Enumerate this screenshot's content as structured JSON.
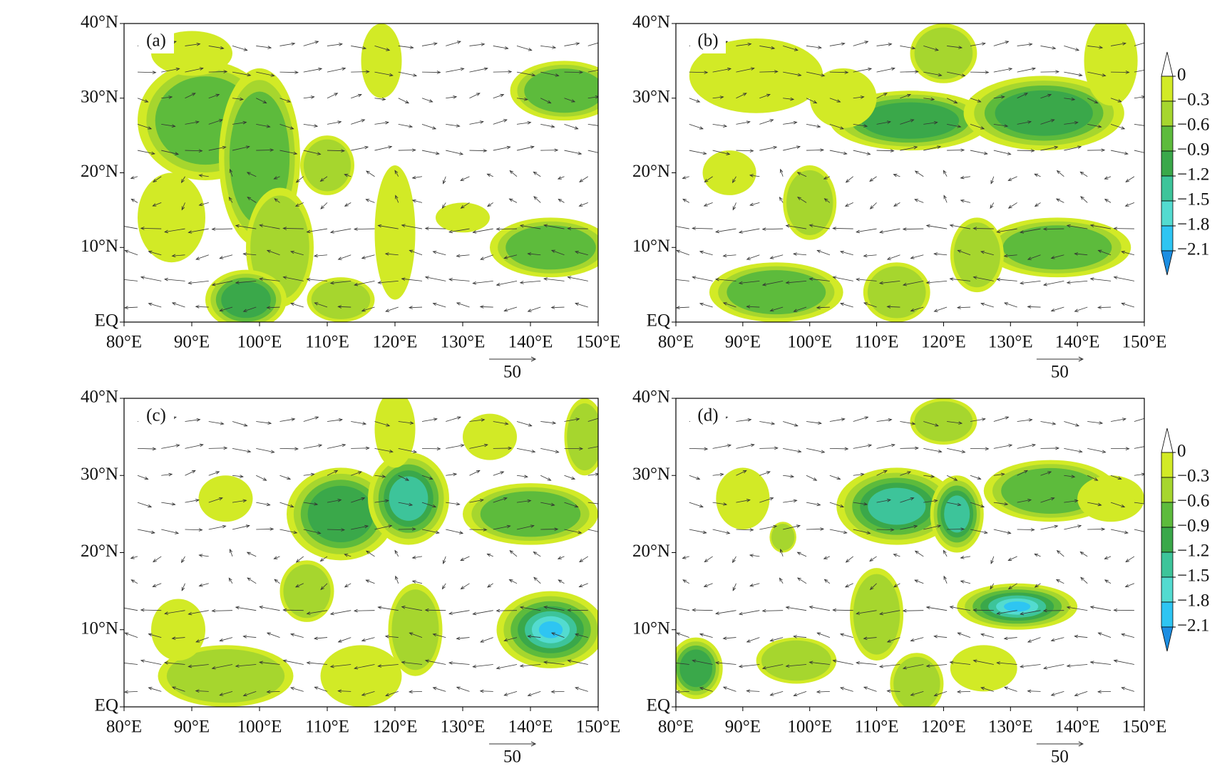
{
  "panels": [
    {
      "label": "(a)"
    },
    {
      "label": "(b)"
    },
    {
      "label": "(c)"
    },
    {
      "label": "(d)"
    }
  ],
  "xlim": [
    80,
    150
  ],
  "ylim": [
    0,
    40
  ],
  "xticks": [
    {
      "value": 80,
      "label": "80°E"
    },
    {
      "value": 90,
      "label": "90°E"
    },
    {
      "value": 100,
      "label": "100°E"
    },
    {
      "value": 110,
      "label": "110°E"
    },
    {
      "value": 120,
      "label": "120°E"
    },
    {
      "value": 130,
      "label": "130°E"
    },
    {
      "value": 140,
      "label": "140°E"
    },
    {
      "value": 150,
      "label": "150°E"
    }
  ],
  "yticks": [
    {
      "value": 0,
      "label": "EQ"
    },
    {
      "value": 10,
      "label": "10°N"
    },
    {
      "value": 20,
      "label": "20°N"
    },
    {
      "value": 30,
      "label": "30°N"
    },
    {
      "value": 40,
      "label": "40°N"
    }
  ],
  "colorbar": {
    "levels": [
      0,
      {
        "value": -0.3,
        "label": "−0.3"
      },
      {
        "value": -0.6,
        "label": "−0.6"
      },
      {
        "value": -0.9,
        "label": "−0.9"
      },
      {
        "value": -1.2,
        "label": "−1.2"
      },
      {
        "value": -1.5,
        "label": "−1.5"
      },
      {
        "value": -1.8,
        "label": "−1.8"
      },
      {
        "value": -2.1,
        "label": "−2.1"
      }
    ],
    "colors": [
      "#d2ea26",
      "#a6d62e",
      "#5dbb3c",
      "#3aa84a",
      "#3dc49a",
      "#53dbd0",
      "#2ec5f2",
      "#1c8ee2"
    ],
    "over_color": "#ffffff"
  },
  "reference_vector": 50
}
